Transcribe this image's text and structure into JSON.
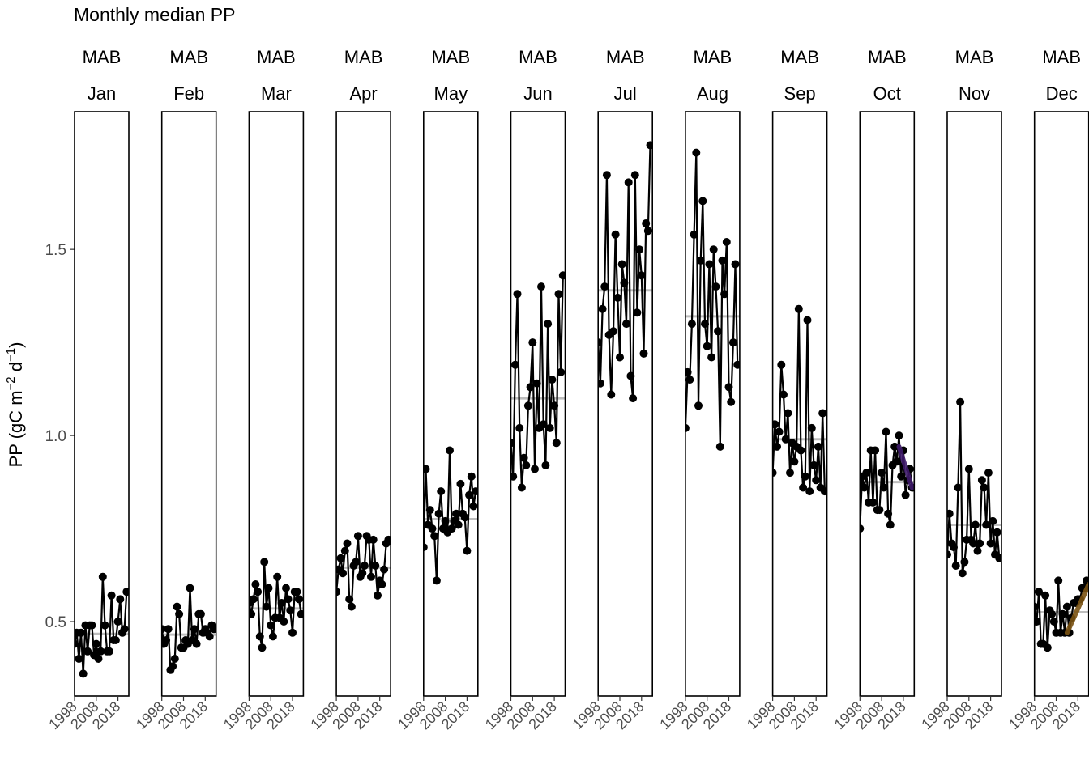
{
  "chart_data": {
    "type": "line",
    "title": "Monthly median PP",
    "ylabel": "PP (gC m⁻² d⁻¹)",
    "ylabel_parts": {
      "main": "PP (gC m",
      "exp1": "−2",
      "mid": " d",
      "exp2": "−1",
      "close": ")"
    },
    "y_ticks": [
      0.5,
      1.0,
      1.5
    ],
    "y_tick_labels": [
      "0.5",
      "1.0",
      "1.5"
    ],
    "ylim": [
      0.3,
      1.87
    ],
    "xlim": [
      1998,
      2023
    ],
    "x_ticks": [
      1998,
      2008,
      2018
    ],
    "x_tick_labels": [
      "1998",
      "2008",
      "2018"
    ],
    "grid": false,
    "colors": {
      "points": "#000000",
      "mean_line": "#bdbdbd",
      "oct_trend": "#3f1a6b",
      "dec_trend": "#7a5312"
    },
    "panels": [
      {
        "region": "MAB",
        "month": "Jan",
        "mean": 0.467,
        "values": [
          0.44,
          0.47,
          0.4,
          0.47,
          0.36,
          0.49,
          0.42,
          0.49,
          0.49,
          0.41,
          0.44,
          0.4,
          0.42,
          0.62,
          0.49,
          0.42,
          0.42,
          0.57,
          0.45,
          0.45,
          0.5,
          0.56,
          0.47,
          0.48,
          0.58
        ]
      },
      {
        "region": "MAB",
        "month": "Feb",
        "mean": 0.465,
        "values": [
          0.48,
          0.44,
          0.45,
          0.48,
          0.37,
          0.38,
          0.4,
          0.54,
          0.52,
          0.43,
          0.43,
          0.45,
          0.44,
          0.59,
          0.45,
          0.48,
          0.44,
          0.52,
          0.52,
          0.47,
          0.48,
          0.47,
          0.46,
          0.49,
          0.48
        ]
      },
      {
        "region": "MAB",
        "month": "Mar",
        "mean": 0.535,
        "values": [
          0.55,
          0.52,
          0.56,
          0.6,
          0.58,
          0.46,
          0.43,
          0.66,
          0.54,
          0.59,
          0.49,
          0.46,
          0.51,
          0.62,
          0.51,
          0.55,
          0.5,
          0.59,
          0.56,
          0.53,
          0.47,
          0.58,
          0.58,
          0.56,
          0.52
        ]
      },
      {
        "region": "MAB",
        "month": "Apr",
        "mean": 0.645,
        "values": [
          0.58,
          0.64,
          0.67,
          0.63,
          0.69,
          0.71,
          0.56,
          0.54,
          0.65,
          0.66,
          0.73,
          0.62,
          0.63,
          0.65,
          0.73,
          0.72,
          0.62,
          0.72,
          0.65,
          0.57,
          0.61,
          0.6,
          0.64,
          0.71,
          0.72
        ]
      },
      {
        "region": "MAB",
        "month": "May",
        "mean": 0.775,
        "values": [
          0.7,
          0.91,
          0.76,
          0.8,
          0.75,
          0.73,
          0.61,
          0.79,
          0.85,
          0.75,
          0.77,
          0.74,
          0.96,
          0.75,
          0.77,
          0.79,
          0.76,
          0.87,
          0.79,
          0.78,
          0.69,
          0.84,
          0.89,
          0.81,
          0.85
        ]
      },
      {
        "region": "MAB",
        "month": "Jun",
        "mean": 1.1,
        "values": [
          0.98,
          0.89,
          1.19,
          1.38,
          1.02,
          0.86,
          0.94,
          0.92,
          1.08,
          1.13,
          1.25,
          0.91,
          1.14,
          1.02,
          1.4,
          1.03,
          0.92,
          1.3,
          1.02,
          1.15,
          1.08,
          0.98,
          1.38,
          1.17,
          1.43
        ]
      },
      {
        "region": "MAB",
        "month": "Jul",
        "mean": 1.39,
        "values": [
          1.25,
          1.14,
          1.34,
          1.4,
          1.7,
          1.27,
          1.11,
          1.28,
          1.54,
          1.37,
          1.21,
          1.46,
          1.41,
          1.3,
          1.68,
          1.16,
          1.1,
          1.7,
          1.33,
          1.5,
          1.43,
          1.22,
          1.57,
          1.55,
          1.78
        ]
      },
      {
        "region": "MAB",
        "month": "Aug",
        "mean": 1.32,
        "values": [
          1.02,
          1.17,
          1.15,
          1.3,
          1.54,
          1.76,
          1.08,
          1.47,
          1.63,
          1.3,
          1.24,
          1.46,
          1.21,
          1.5,
          1.4,
          1.28,
          0.97,
          1.47,
          1.38,
          1.52,
          1.13,
          1.09,
          1.25,
          1.46,
          1.19
        ]
      },
      {
        "region": "MAB",
        "month": "Sep",
        "mean": 0.99,
        "values": [
          0.9,
          1.03,
          0.97,
          1.01,
          1.19,
          1.11,
          0.99,
          1.06,
          0.9,
          0.98,
          0.93,
          0.97,
          1.34,
          0.96,
          0.86,
          0.89,
          1.31,
          0.85,
          1.02,
          0.92,
          0.88,
          0.97,
          0.86,
          1.06,
          0.85
        ]
      },
      {
        "region": "MAB",
        "month": "Oct",
        "mean": 0.875,
        "trend": {
          "from_year": 2016,
          "to_year": 2022,
          "from_value": 0.97,
          "to_value": 0.86
        },
        "values": [
          0.75,
          0.89,
          0.86,
          0.9,
          0.82,
          0.96,
          0.82,
          0.96,
          0.8,
          0.8,
          0.9,
          0.86,
          1.01,
          0.79,
          0.76,
          0.92,
          0.97,
          0.93,
          1.0,
          0.89,
          0.96,
          0.84,
          0.88,
          0.91,
          0.86
        ]
      },
      {
        "region": "MAB",
        "month": "Nov",
        "mean": 0.76,
        "values": [
          0.68,
          0.79,
          0.71,
          0.7,
          0.65,
          0.86,
          1.09,
          0.63,
          0.66,
          0.72,
          0.91,
          0.72,
          0.71,
          0.76,
          0.69,
          0.71,
          0.88,
          0.86,
          0.76,
          0.9,
          0.71,
          0.77,
          0.68,
          0.74,
          0.67
        ]
      },
      {
        "region": "MAB",
        "month": "Dec",
        "mean": 0.525,
        "trend": {
          "from_year": 2013,
          "to_year": 2023,
          "from_value": 0.47,
          "to_value": 0.6
        },
        "values": [
          0.54,
          0.5,
          0.58,
          0.44,
          0.44,
          0.57,
          0.43,
          0.53,
          0.52,
          0.5,
          0.47,
          0.61,
          0.47,
          0.52,
          0.47,
          0.54,
          0.47,
          0.51,
          0.55,
          0.55,
          0.56,
          0.56,
          0.59,
          0.59,
          0.61
        ]
      }
    ]
  }
}
